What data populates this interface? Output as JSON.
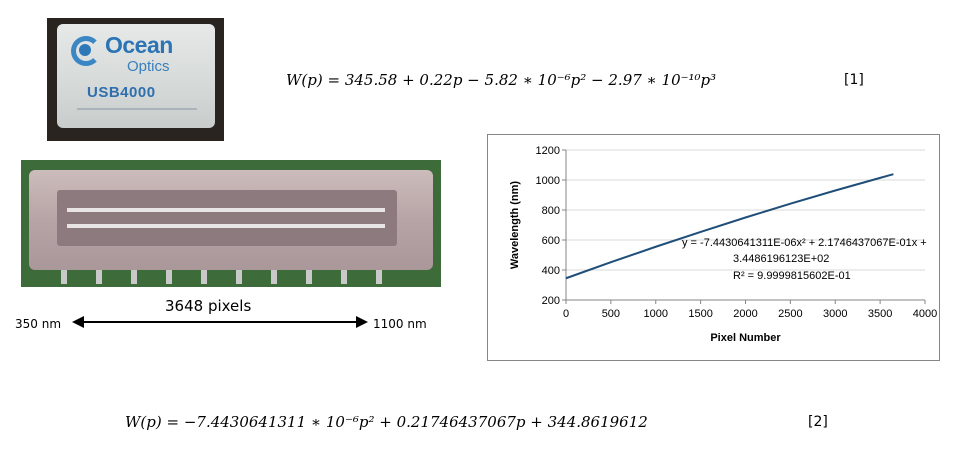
{
  "device": {
    "logo_word_1": "Ocean",
    "logo_word_2": "Optics",
    "model": "USB4000"
  },
  "equation_1": {
    "text": "W(p) = 345.58 + 0.22p − 5.82 ∗ 10⁻⁶p² − 2.97 ∗ 10⁻¹⁰p³",
    "number": "[1]"
  },
  "detector": {
    "pixels_label": "3648 pixels",
    "start_label": "350 nm",
    "end_label": "1100 nm"
  },
  "equation_2": {
    "text": "W(p) = −7.4430641311 ∗ 10⁻⁶p² + 0.21746437067p + 344.8619612",
    "number": "[2]"
  },
  "chart_data": {
    "type": "line",
    "xlabel": "Pixel Number",
    "ylabel": "Wavelength (nm)",
    "xlim": [
      0,
      4000
    ],
    "ylim": [
      200,
      1200
    ],
    "x_ticks": [
      0,
      500,
      1000,
      1500,
      2000,
      2500,
      3000,
      3500,
      4000
    ],
    "y_ticks": [
      200,
      400,
      600,
      800,
      1000,
      1200
    ],
    "grid": "horizontal",
    "line_color": "#1f4e79",
    "series": [
      {
        "x": [
          0,
          500,
          1000,
          1500,
          2000,
          2500,
          3000,
          3500,
          3648
        ],
        "y": [
          345,
          452,
          555,
          654,
          750,
          842,
          930,
          1014,
          1039
        ]
      }
    ],
    "annotation": [
      "y = -7.4430641311E-06x² + 2.1746437067E-01x +",
      "3.4486196123E+02",
      "R² = 9.9999815602E-01"
    ]
  }
}
